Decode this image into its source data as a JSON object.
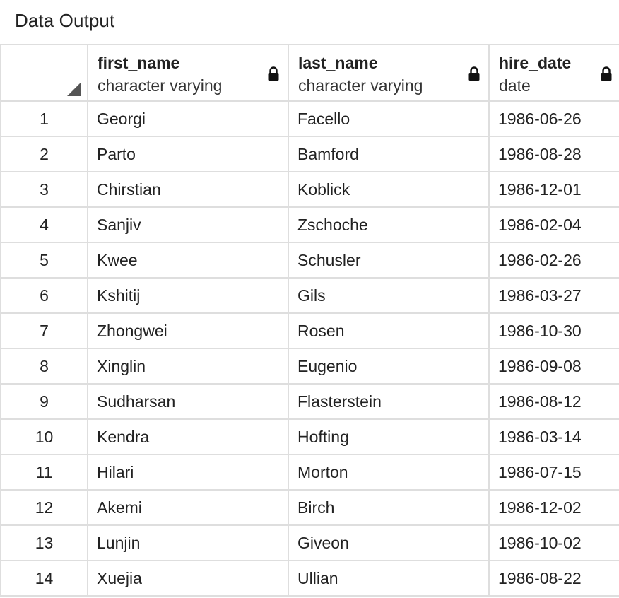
{
  "panel": {
    "title": "Data Output"
  },
  "columns": [
    {
      "name": "first_name",
      "type": "character varying",
      "icon": "lock-icon"
    },
    {
      "name": "last_name",
      "type": "character varying",
      "icon": "lock-icon"
    },
    {
      "name": "hire_date",
      "type": "date",
      "icon": "lock-icon"
    }
  ],
  "rows": [
    {
      "num": "1",
      "first_name": "Georgi",
      "last_name": "Facello",
      "hire_date": "1986-06-26"
    },
    {
      "num": "2",
      "first_name": "Parto",
      "last_name": "Bamford",
      "hire_date": "1986-08-28"
    },
    {
      "num": "3",
      "first_name": "Chirstian",
      "last_name": "Koblick",
      "hire_date": "1986-12-01"
    },
    {
      "num": "4",
      "first_name": "Sanjiv",
      "last_name": "Zschoche",
      "hire_date": "1986-02-04"
    },
    {
      "num": "5",
      "first_name": "Kwee",
      "last_name": "Schusler",
      "hire_date": "1986-02-26"
    },
    {
      "num": "6",
      "first_name": "Kshitij",
      "last_name": "Gils",
      "hire_date": "1986-03-27"
    },
    {
      "num": "7",
      "first_name": "Zhongwei",
      "last_name": "Rosen",
      "hire_date": "1986-10-30"
    },
    {
      "num": "8",
      "first_name": "Xinglin",
      "last_name": "Eugenio",
      "hire_date": "1986-09-08"
    },
    {
      "num": "9",
      "first_name": "Sudharsan",
      "last_name": "Flasterstein",
      "hire_date": "1986-08-12"
    },
    {
      "num": "10",
      "first_name": "Kendra",
      "last_name": "Hofting",
      "hire_date": "1986-03-14"
    },
    {
      "num": "11",
      "first_name": "Hilari",
      "last_name": "Morton",
      "hire_date": "1986-07-15"
    },
    {
      "num": "12",
      "first_name": "Akemi",
      "last_name": "Birch",
      "hire_date": "1986-12-02"
    },
    {
      "num": "13",
      "first_name": "Lunjin",
      "last_name": "Giveon",
      "hire_date": "1986-10-02"
    },
    {
      "num": "14",
      "first_name": "Xuejia",
      "last_name": "Ullian",
      "hire_date": "1986-08-22"
    }
  ]
}
